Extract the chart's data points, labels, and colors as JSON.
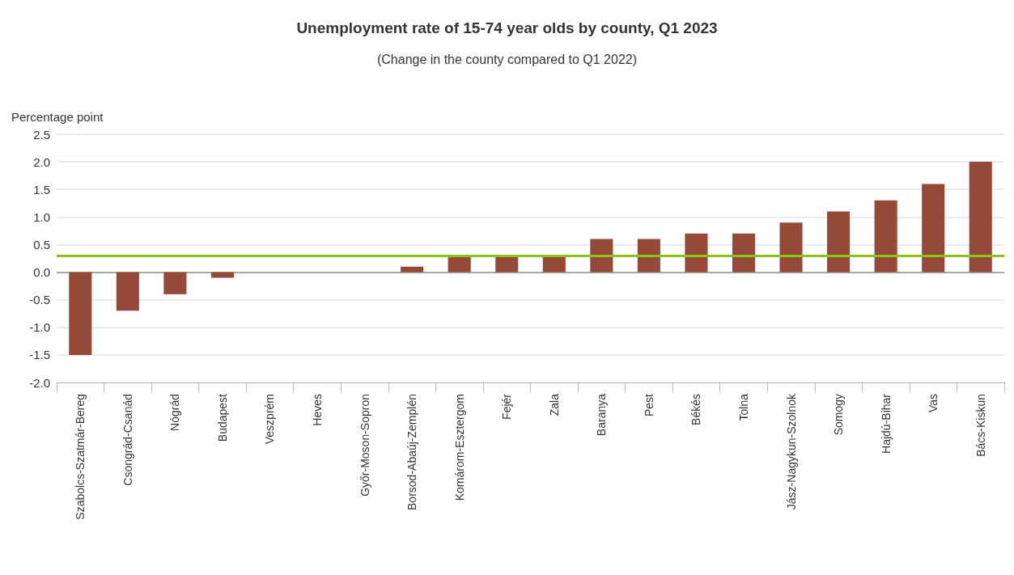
{
  "chart_data": {
    "type": "bar",
    "title": "Unemployment rate of 15-74 year olds by county, Q1 2023",
    "subtitle": "(Change in the county compared to Q1 2022)",
    "ylabel": "Percentage point",
    "categories": [
      "Szabolcs-Szatmár-Bereg",
      "Csongrád-Csanád",
      "Nógrád",
      "Budapest",
      "Veszprém",
      "Heves",
      "Győr-Moson-Sopron",
      "Borsod-Abaúj-Zemplén",
      "Komárom-Esztergom",
      "Fejér",
      "Zala",
      "Baranya",
      "Pest",
      "Békés",
      "Tolna",
      "Jász-Nagykun-Szolnok",
      "Somogy",
      "Hajdú-Bihar",
      "Vas",
      "Bács-Kiskun"
    ],
    "values": [
      -1.5,
      -0.7,
      -0.4,
      -0.1,
      0,
      0,
      0,
      0.1,
      0.3,
      0.3,
      0.3,
      0.6,
      0.6,
      0.7,
      0.7,
      0.9,
      1.1,
      1.3,
      1.6,
      2.0
    ],
    "color": "#954a38",
    "ylim": [
      -2,
      2.5
    ],
    "yticks": [
      {
        "value": -2,
        "label": "-2.0"
      },
      {
        "value": -1.5,
        "label": "-1.5"
      },
      {
        "value": -1,
        "label": "-1.0"
      },
      {
        "value": -0.5,
        "label": "-0.5"
      },
      {
        "value": 0,
        "label": "0.0"
      },
      {
        "value": 0.5,
        "label": "0.5"
      },
      {
        "value": 1,
        "label": "1.0"
      },
      {
        "value": 1.5,
        "label": "1.5"
      },
      {
        "value": 2,
        "label": "2.0"
      },
      {
        "value": 2.5,
        "label": "2.5"
      }
    ],
    "grid": "y",
    "ref_lines": [
      {
        "axis": "y",
        "value": 0.3,
        "color": "#8cc21a"
      }
    ]
  }
}
